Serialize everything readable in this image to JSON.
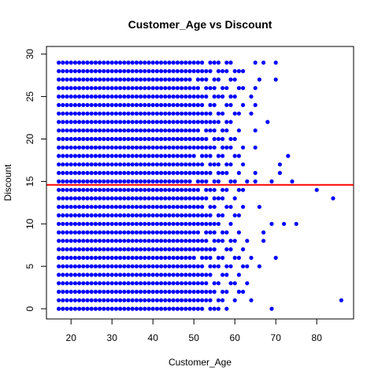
{
  "chart_data": {
    "type": "scatter",
    "title": "Customer_Age vs Discount",
    "xlabel": "Customer_Age",
    "ylabel": "Discount",
    "xlim": [
      14,
      89
    ],
    "ylim": [
      -1.2,
      30.9
    ],
    "x_ticks": [
      20,
      30,
      40,
      50,
      60,
      70,
      80
    ],
    "y_ticks": [
      0,
      5,
      10,
      15,
      20,
      25,
      30
    ],
    "point_color": "#0000ff",
    "reference_line": {
      "orientation": "horizontal",
      "y": 14.6,
      "color": "#ff0000"
    },
    "grid": false,
    "legend": "none",
    "age_range_by_discount": [
      [
        17,
        58
      ],
      [
        17,
        64
      ],
      [
        17,
        62
      ],
      [
        17,
        63
      ],
      [
        17,
        62
      ],
      [
        17,
        66
      ],
      [
        17,
        64
      ],
      [
        17,
        62
      ],
      [
        17,
        63
      ],
      [
        17,
        62
      ],
      [
        17,
        62
      ],
      [
        17,
        62
      ],
      [
        17,
        63
      ],
      [
        17,
        62
      ],
      [
        17,
        63
      ],
      [
        17,
        64
      ],
      [
        17,
        63
      ],
      [
        17,
        62
      ],
      [
        17,
        63
      ],
      [
        17,
        64
      ],
      [
        17,
        62
      ],
      [
        17,
        63
      ],
      [
        17,
        62
      ],
      [
        17,
        64
      ],
      [
        17,
        63
      ],
      [
        17,
        64
      ],
      [
        17,
        63
      ],
      [
        17,
        62
      ],
      [
        17,
        63
      ],
      [
        17,
        60
      ]
    ],
    "sparse_points": [
      [
        69,
        0
      ],
      [
        86,
        1
      ],
      [
        70,
        6
      ],
      [
        67,
        8
      ],
      [
        67,
        9
      ],
      [
        69,
        10
      ],
      [
        72,
        10
      ],
      [
        75,
        10
      ],
      [
        66,
        12
      ],
      [
        84,
        13
      ],
      [
        80,
        14
      ],
      [
        65,
        15
      ],
      [
        69,
        15
      ],
      [
        74,
        15
      ],
      [
        65,
        16
      ],
      [
        71,
        16
      ],
      [
        71,
        17
      ],
      [
        73,
        18
      ],
      [
        65,
        19
      ],
      [
        65,
        21
      ],
      [
        68,
        22
      ],
      [
        65,
        24
      ],
      [
        65,
        26
      ],
      [
        66,
        27
      ],
      [
        70,
        27
      ],
      [
        62,
        28
      ],
      [
        65,
        29
      ],
      [
        67,
        29
      ],
      [
        70,
        29
      ]
    ]
  }
}
